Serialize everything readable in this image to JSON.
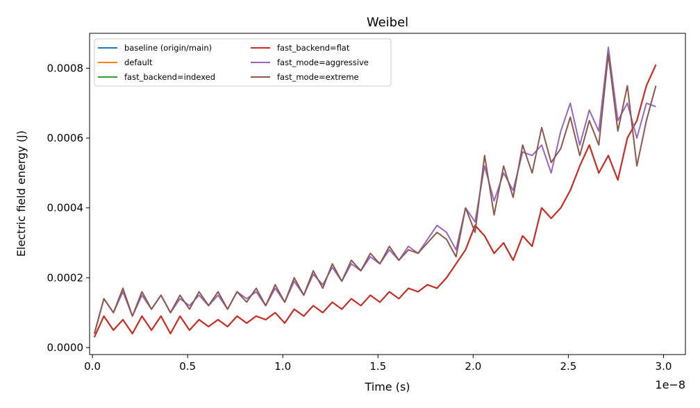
{
  "chart_data": {
    "type": "line",
    "title": "Weibel",
    "xlabel": "Time (s)",
    "ylabel": "Electric field energy (J)",
    "x_offset_label": "1e−8",
    "xlim": [
      -0.015,
      3.115
    ],
    "ylim": [
      -2e-05,
      0.0009
    ],
    "xticks": [
      0.0,
      0.5,
      1.0,
      1.5,
      2.0,
      2.5,
      3.0
    ],
    "xtick_labels": [
      "0.0",
      "0.5",
      "1.0",
      "1.5",
      "2.0",
      "2.5",
      "3.0"
    ],
    "yticks": [
      0.0,
      0.0002,
      0.0004,
      0.0006,
      0.0008
    ],
    "ytick_labels": [
      "0.0000",
      "0.0002",
      "0.0004",
      "0.0006",
      "0.0008"
    ],
    "grid": false,
    "legend_position": "top-left",
    "x": [
      0.01,
      0.06,
      0.11,
      0.16,
      0.21,
      0.26,
      0.31,
      0.36,
      0.41,
      0.46,
      0.51,
      0.56,
      0.61,
      0.66,
      0.71,
      0.76,
      0.81,
      0.86,
      0.91,
      0.96,
      1.01,
      1.06,
      1.11,
      1.16,
      1.21,
      1.26,
      1.31,
      1.36,
      1.41,
      1.46,
      1.51,
      1.56,
      1.61,
      1.66,
      1.71,
      1.76,
      1.81,
      1.86,
      1.91,
      1.96,
      2.01,
      2.06,
      2.11,
      2.16,
      2.21,
      2.26,
      2.31,
      2.36,
      2.41,
      2.46,
      2.51,
      2.56,
      2.61,
      2.66,
      2.71,
      2.76,
      2.81,
      2.86,
      2.91,
      2.96
    ],
    "series": [
      {
        "name": "baseline (origin/main)",
        "color": "#1f77b4",
        "values": [
          3e-05,
          9e-05,
          5e-05,
          8e-05,
          4e-05,
          9e-05,
          5e-05,
          9e-05,
          4e-05,
          9e-05,
          5e-05,
          8e-05,
          6e-05,
          8e-05,
          6e-05,
          9e-05,
          7e-05,
          9e-05,
          8e-05,
          0.0001,
          7e-05,
          0.00011,
          9e-05,
          0.00012,
          0.0001,
          0.00013,
          0.00011,
          0.00014,
          0.00012,
          0.00015,
          0.00013,
          0.00016,
          0.00014,
          0.00017,
          0.00016,
          0.00018,
          0.00017,
          0.0002,
          0.00024,
          0.00028,
          0.00035,
          0.00032,
          0.00027,
          0.0003,
          0.00025,
          0.00032,
          0.00029,
          0.0004,
          0.00037,
          0.0004,
          0.00045,
          0.00052,
          0.00058,
          0.0005,
          0.00055,
          0.00048,
          0.0006,
          0.00065,
          0.00075,
          0.00081
        ]
      },
      {
        "name": "default",
        "color": "#ff7f0e",
        "values": [
          3e-05,
          9e-05,
          5e-05,
          8e-05,
          4e-05,
          9e-05,
          5e-05,
          9e-05,
          4e-05,
          9e-05,
          5e-05,
          8e-05,
          6e-05,
          8e-05,
          6e-05,
          9e-05,
          7e-05,
          9e-05,
          8e-05,
          0.0001,
          7e-05,
          0.00011,
          9e-05,
          0.00012,
          0.0001,
          0.00013,
          0.00011,
          0.00014,
          0.00012,
          0.00015,
          0.00013,
          0.00016,
          0.00014,
          0.00017,
          0.00016,
          0.00018,
          0.00017,
          0.0002,
          0.00024,
          0.00028,
          0.00035,
          0.00032,
          0.00027,
          0.0003,
          0.00025,
          0.00032,
          0.00029,
          0.0004,
          0.00037,
          0.0004,
          0.00045,
          0.00052,
          0.00058,
          0.0005,
          0.00055,
          0.00048,
          0.0006,
          0.00065,
          0.00075,
          0.00081
        ]
      },
      {
        "name": "fast_backend=indexed",
        "color": "#2ca02c",
        "values": [
          3e-05,
          9e-05,
          5e-05,
          8e-05,
          4e-05,
          9e-05,
          5e-05,
          9e-05,
          4e-05,
          9e-05,
          5e-05,
          8e-05,
          6e-05,
          8e-05,
          6e-05,
          9e-05,
          7e-05,
          9e-05,
          8e-05,
          0.0001,
          7e-05,
          0.00011,
          9e-05,
          0.00012,
          0.0001,
          0.00013,
          0.00011,
          0.00014,
          0.00012,
          0.00015,
          0.00013,
          0.00016,
          0.00014,
          0.00017,
          0.00016,
          0.00018,
          0.00017,
          0.0002,
          0.00024,
          0.00028,
          0.00035,
          0.00032,
          0.00027,
          0.0003,
          0.00025,
          0.00032,
          0.00029,
          0.0004,
          0.00037,
          0.0004,
          0.00045,
          0.00052,
          0.00058,
          0.0005,
          0.00055,
          0.00048,
          0.0006,
          0.00065,
          0.00075,
          0.00081
        ]
      },
      {
        "name": "fast_backend=flat",
        "color": "#d62728",
        "values": [
          3e-05,
          9e-05,
          5e-05,
          8e-05,
          4e-05,
          9e-05,
          5e-05,
          9e-05,
          4e-05,
          9e-05,
          5e-05,
          8e-05,
          6e-05,
          8e-05,
          6e-05,
          9e-05,
          7e-05,
          9e-05,
          8e-05,
          0.0001,
          7e-05,
          0.00011,
          9e-05,
          0.00012,
          0.0001,
          0.00013,
          0.00011,
          0.00014,
          0.00012,
          0.00015,
          0.00013,
          0.00016,
          0.00014,
          0.00017,
          0.00016,
          0.00018,
          0.00017,
          0.0002,
          0.00024,
          0.00028,
          0.00035,
          0.00032,
          0.00027,
          0.0003,
          0.00025,
          0.00032,
          0.00029,
          0.0004,
          0.00037,
          0.0004,
          0.00045,
          0.00052,
          0.00058,
          0.0005,
          0.00055,
          0.00048,
          0.0006,
          0.00065,
          0.00075,
          0.00081
        ]
      },
      {
        "name": "fast_mode=aggressive",
        "color": "#9467bd",
        "values": [
          4e-05,
          0.00014,
          0.0001,
          0.00016,
          9e-05,
          0.00015,
          0.00011,
          0.00015,
          0.0001,
          0.00014,
          0.00012,
          0.00015,
          0.00012,
          0.00015,
          0.00011,
          0.00016,
          0.00014,
          0.00016,
          0.00012,
          0.00017,
          0.00013,
          0.00019,
          0.00015,
          0.00021,
          0.00018,
          0.00023,
          0.00019,
          0.00024,
          0.00022,
          0.00026,
          0.00024,
          0.00028,
          0.00025,
          0.00029,
          0.00027,
          0.00031,
          0.00035,
          0.00033,
          0.00028,
          0.0004,
          0.00036,
          0.00052,
          0.00042,
          0.0005,
          0.00045,
          0.00056,
          0.00055,
          0.00058,
          0.0005,
          0.00062,
          0.0007,
          0.00058,
          0.00068,
          0.00062,
          0.00086,
          0.00065,
          0.0007,
          0.0006,
          0.0007,
          0.00069
        ]
      },
      {
        "name": "fast_mode=extreme",
        "color": "#8c564b",
        "values": [
          4e-05,
          0.00014,
          0.0001,
          0.00017,
          9e-05,
          0.00016,
          0.00011,
          0.00015,
          0.0001,
          0.00015,
          0.00011,
          0.00016,
          0.00012,
          0.00016,
          0.00011,
          0.00016,
          0.00013,
          0.00017,
          0.00012,
          0.00018,
          0.00013,
          0.0002,
          0.00015,
          0.00022,
          0.00017,
          0.00024,
          0.00019,
          0.00025,
          0.00022,
          0.00027,
          0.00024,
          0.00029,
          0.00025,
          0.00028,
          0.00027,
          0.0003,
          0.00033,
          0.00031,
          0.00026,
          0.0004,
          0.00033,
          0.00055,
          0.00038,
          0.00052,
          0.00043,
          0.00058,
          0.0005,
          0.00063,
          0.00053,
          0.00057,
          0.00066,
          0.00055,
          0.00065,
          0.00058,
          0.00084,
          0.00062,
          0.00075,
          0.00052,
          0.00065,
          0.00075
        ]
      }
    ]
  }
}
